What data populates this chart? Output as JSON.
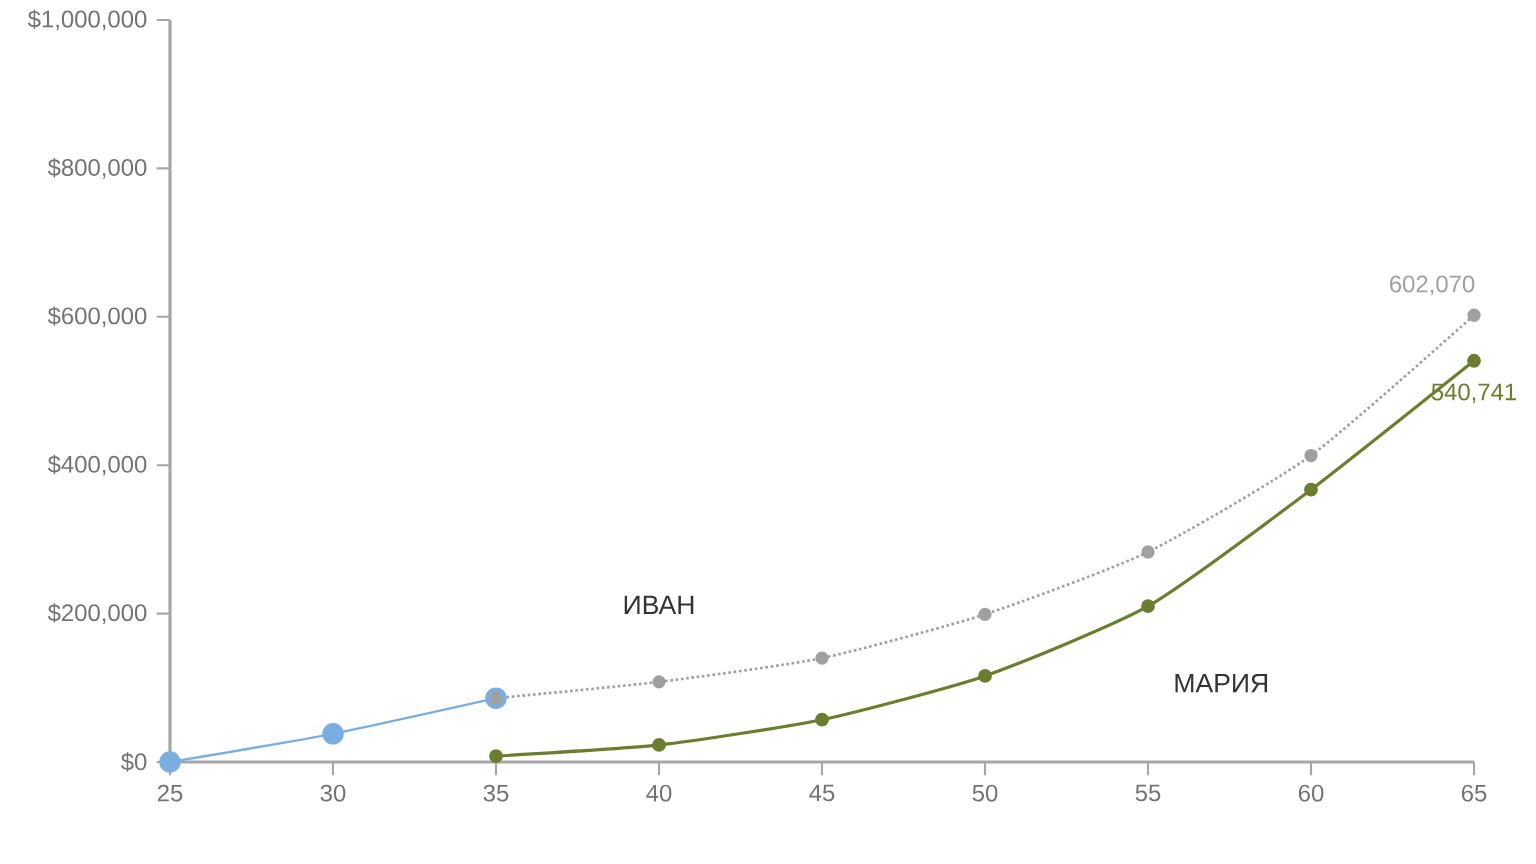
{
  "chart_data": {
    "type": "line",
    "x": [
      25,
      30,
      35
    ],
    "series": [
      {
        "color": "#7aaee0",
        "values": [
          0,
          38000,
          86000
        ],
        "line_style": "solid"
      },
      {
        "name": "ИВАН",
        "color": "#a0a0a0",
        "x": [
          35,
          40,
          45,
          50,
          55,
          60,
          65
        ],
        "values": [
          86000,
          108000,
          140000,
          199000,
          283000,
          413000,
          602070
        ],
        "line_style": "dotted",
        "value_labels": [
          null,
          null,
          null,
          null,
          null,
          null,
          "602,070"
        ]
      },
      {
        "name": "МАРИЯ",
        "color": "#6b7d2e",
        "x": [
          35,
          40,
          45,
          50,
          55,
          60,
          65
        ],
        "values": [
          8000,
          23000,
          57000,
          116000,
          210000,
          367000,
          540741
        ],
        "line_style": "solid",
        "value_labels": [
          null,
          null,
          null,
          null,
          null,
          null,
          "540,741"
        ]
      }
    ],
    "xlim": [
      25,
      65
    ],
    "ylim": [
      0,
      1000000
    ],
    "xticks": [
      25,
      30,
      35,
      40,
      45,
      50,
      55,
      60,
      65
    ],
    "yticks": [
      {
        "value": 0,
        "label": "$0"
      },
      {
        "value": 200000,
        "label": "$200,000"
      },
      {
        "value": 400000,
        "label": "$400,000"
      },
      {
        "value": 600000,
        "label": "$600,000"
      },
      {
        "value": 800000,
        "label": "$800,000"
      },
      {
        "value": 1000000,
        "label": "$1,000,000"
      }
    ],
    "marker": "circle",
    "grid": false,
    "legend": false
  }
}
